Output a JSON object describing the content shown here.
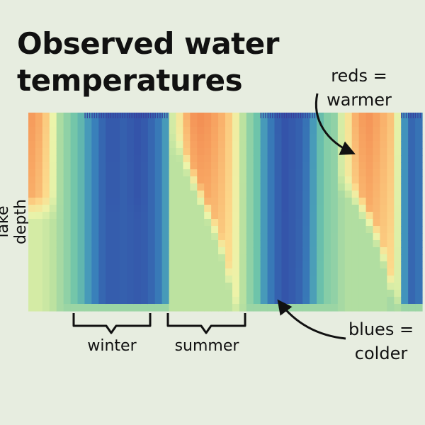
{
  "title_lines": [
    "Observed water",
    "temperatures"
  ],
  "chart_data": {
    "type": "heatmap",
    "title": "Observed water temperatures",
    "xlabel": "",
    "ylabel": "lake depth",
    "columns": 56,
    "rows": 28,
    "column_surface_temp": [
      0.92,
      0.88,
      0.8,
      0.62,
      0.45,
      0.4,
      0.35,
      0.3,
      0.22,
      0.14,
      0.06,
      0.02,
      0.02,
      0.04,
      0.02,
      0.0,
      0.02,
      0.06,
      0.12,
      0.22,
      0.55,
      0.7,
      0.86,
      0.94,
      0.96,
      0.94,
      0.9,
      0.86,
      0.8,
      0.66,
      0.48,
      0.4,
      0.34,
      0.22,
      0.12,
      0.04,
      0.0,
      0.02,
      0.04,
      0.1,
      0.22,
      0.32,
      0.38,
      0.4,
      0.56,
      0.72,
      0.86,
      0.92,
      0.94,
      0.9,
      0.86,
      0.82,
      0.6,
      0.2,
      0.06,
      0.1
    ],
    "column_thermocline_depth": [
      0.42,
      0.42,
      0.42,
      0.42,
      0.42,
      0.42,
      0.42,
      0.42,
      0.42,
      0.42,
      0.42,
      0.42,
      0.42,
      0.42,
      0.42,
      0.42,
      0.42,
      0.42,
      0.42,
      0.42,
      0.1,
      0.12,
      0.2,
      0.28,
      0.36,
      0.44,
      0.52,
      0.62,
      0.76,
      0.92,
      0.96,
      0.96,
      0.96,
      0.96,
      0.96,
      0.96,
      0.96,
      0.96,
      0.96,
      0.96,
      0.96,
      0.96,
      0.96,
      0.96,
      0.3,
      0.32,
      0.36,
      0.42,
      0.48,
      0.56,
      0.66,
      0.8,
      0.9,
      0.96,
      0.96,
      0.96
    ],
    "column_bottom_temp": [
      0.55,
      0.55,
      0.52,
      0.48,
      0.44,
      0.4,
      0.35,
      0.3,
      0.22,
      0.14,
      0.06,
      0.03,
      0.03,
      0.04,
      0.03,
      0.02,
      0.03,
      0.06,
      0.12,
      0.22,
      0.48,
      0.48,
      0.48,
      0.48,
      0.48,
      0.48,
      0.48,
      0.48,
      0.48,
      0.46,
      0.44,
      0.4,
      0.34,
      0.22,
      0.12,
      0.05,
      0.02,
      0.04,
      0.12,
      0.22,
      0.32,
      0.38,
      0.4,
      0.42,
      0.44,
      0.46,
      0.46,
      0.46,
      0.46,
      0.46,
      0.46,
      0.44,
      0.4,
      0.2,
      0.06,
      0.1
    ],
    "legend": "none",
    "grid": false
  },
  "annotations": {
    "warm": [
      "reds =",
      "warmer"
    ],
    "cold": [
      "blues =",
      "colder"
    ]
  },
  "seasons": {
    "winter": "winter",
    "summer": "summer"
  }
}
